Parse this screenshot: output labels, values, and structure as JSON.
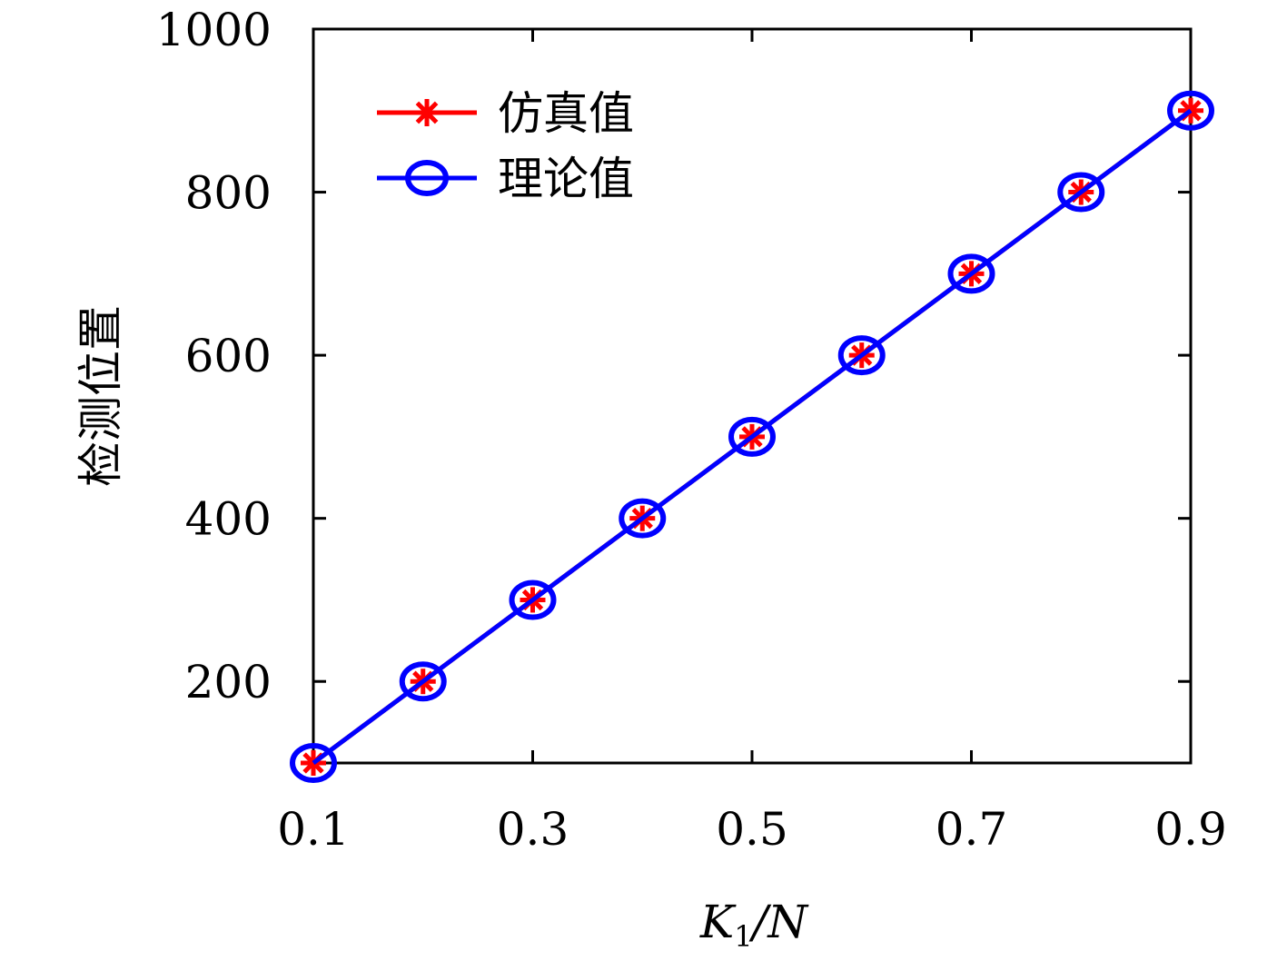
{
  "chart_data": {
    "type": "line",
    "x": [
      0.1,
      0.2,
      0.3,
      0.4,
      0.5,
      0.6,
      0.7,
      0.8,
      0.9
    ],
    "series": [
      {
        "name": "仿真值",
        "values": [
          100,
          200,
          300,
          400,
          500,
          600,
          700,
          800,
          900
        ],
        "color": "#ff0000",
        "marker": "asterisk"
      },
      {
        "name": "理论值",
        "values": [
          100,
          200,
          300,
          400,
          500,
          600,
          700,
          800,
          900
        ],
        "color": "#0000ff",
        "marker": "circle"
      }
    ],
    "xlim": [
      0.1,
      0.9
    ],
    "ylim": [
      100,
      1000
    ],
    "xticks": [
      "0.1",
      "0.3",
      "0.5",
      "0.7",
      "0.9"
    ],
    "yticks": [
      "200",
      "400",
      "600",
      "800",
      "1000"
    ],
    "xlabel": "K1/N",
    "xlabel_main": "K",
    "xlabel_sub": "1",
    "xlabel_rest": "/N",
    "ylabel": "检测位置",
    "legend_position": "top-left",
    "grid": false
  }
}
